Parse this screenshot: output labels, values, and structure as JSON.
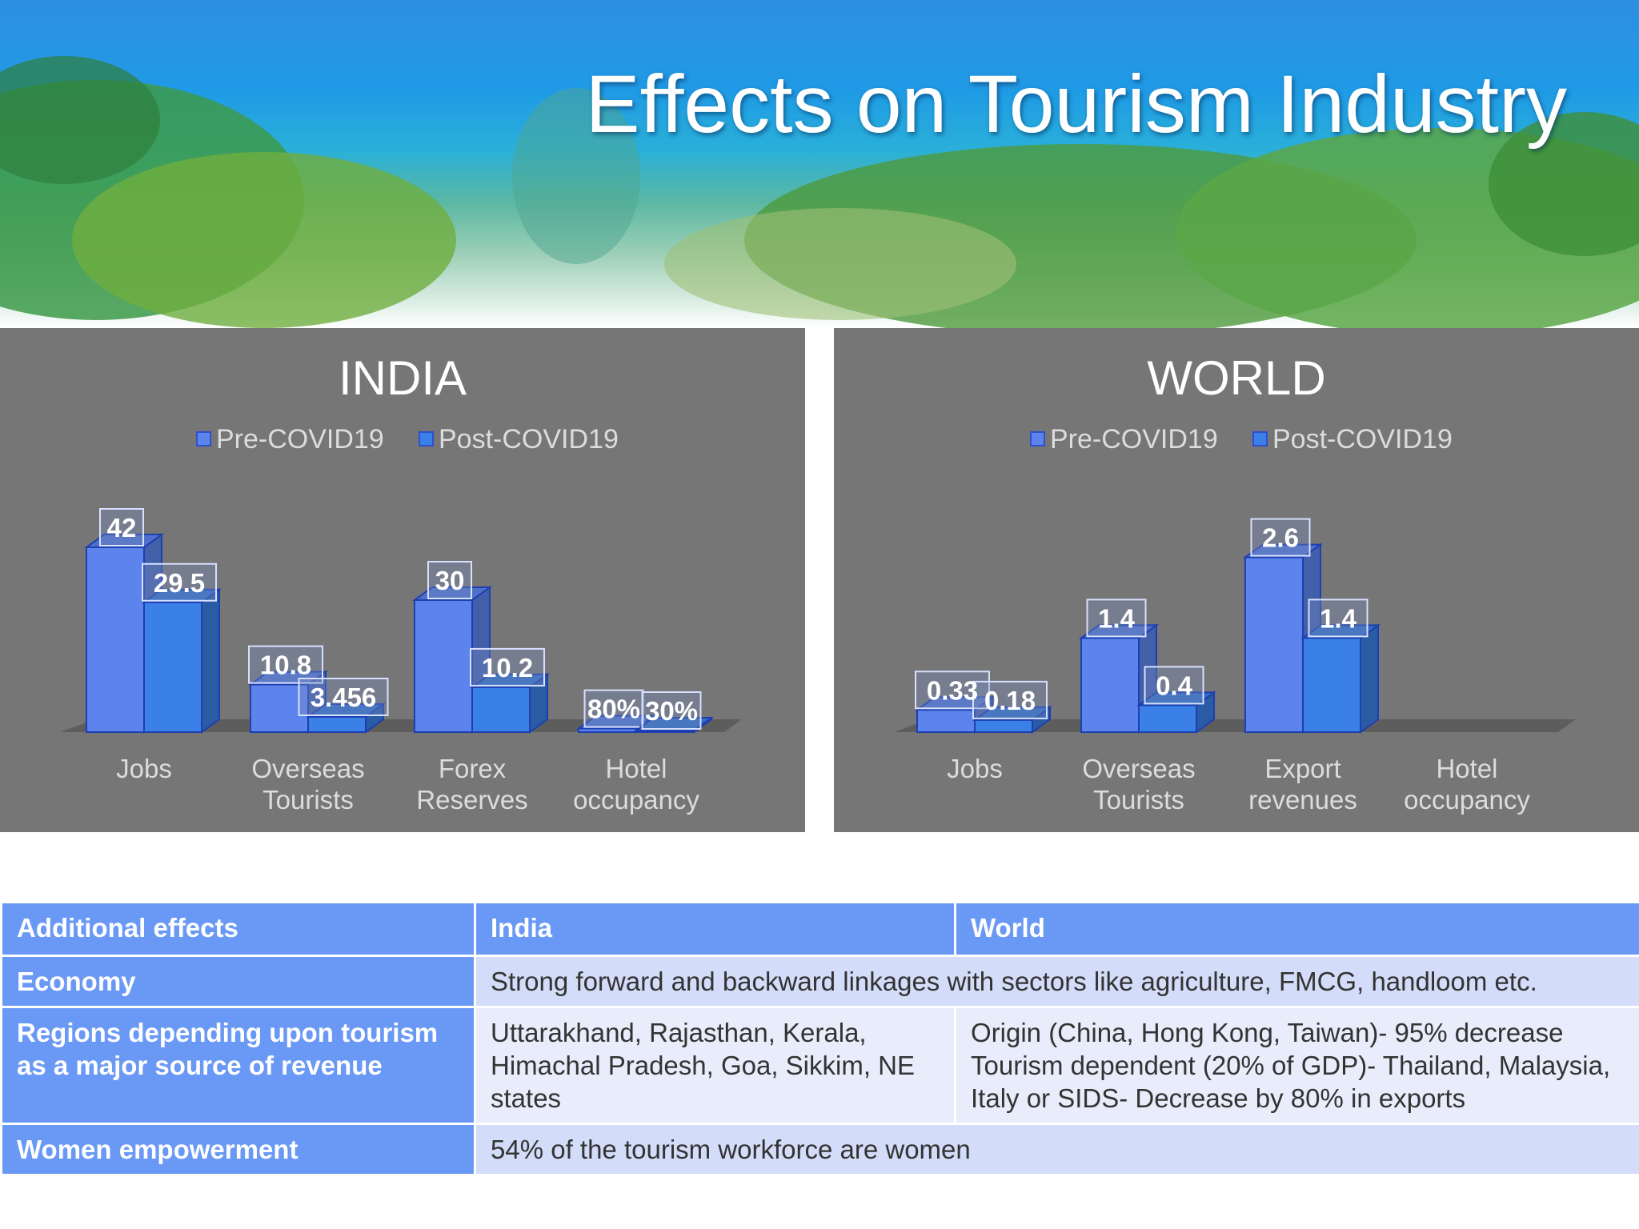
{
  "title": "Effects on Tourism Industry",
  "colors": {
    "pre": "#5c84ec",
    "post": "#3a80e6",
    "panel": "#767676",
    "table_header": "#6a99f5"
  },
  "india": {
    "title": "INDIA",
    "legend": [
      "Pre-COVID19",
      "Post-COVID19"
    ]
  },
  "world": {
    "title": "WORLD",
    "legend": [
      "Pre-COVID19",
      "Post-COVID19"
    ]
  },
  "chart_data": [
    {
      "type": "bar",
      "title": "INDIA",
      "categories": [
        [
          "Jobs"
        ],
        [
          "Overseas",
          "Tourists"
        ],
        [
          "Forex",
          "Reserves"
        ],
        [
          "Hotel",
          "occupancy"
        ]
      ],
      "series": [
        {
          "name": "Pre-COVID19",
          "values": [
            42,
            10.8,
            30,
            0.8
          ],
          "labels": [
            "42",
            "10.8",
            "30",
            "80%"
          ]
        },
        {
          "name": "Post-COVID19",
          "values": [
            29.5,
            3.456,
            10.2,
            0.3
          ],
          "labels": [
            "29.5",
            "3.456",
            "10.2",
            "30%"
          ]
        }
      ],
      "legend": "top",
      "grid": false
    },
    {
      "type": "bar",
      "title": "WORLD",
      "categories": [
        [
          "Jobs"
        ],
        [
          "Overseas",
          "Tourists"
        ],
        [
          "Export",
          "revenues"
        ],
        [
          "Hotel",
          "occupancy"
        ]
      ],
      "series": [
        {
          "name": "Pre-COVID19",
          "values": [
            0.33,
            1.4,
            2.6,
            null
          ],
          "labels": [
            "0.33",
            "1.4",
            "2.6",
            ""
          ]
        },
        {
          "name": "Post-COVID19",
          "values": [
            0.18,
            0.4,
            1.4,
            null
          ],
          "labels": [
            "0.18",
            "0.4",
            "1.4",
            ""
          ]
        }
      ],
      "legend": "top",
      "grid": false
    }
  ],
  "table": {
    "headers": [
      "Additional effects",
      "India",
      "World"
    ],
    "rows": [
      {
        "label": "Economy",
        "span": "Strong forward and backward linkages with sectors like agriculture, FMCG, handloom etc."
      },
      {
        "label": "Regions depending upon tourism as a major source of revenue",
        "india": "Uttarakhand, Rajasthan, Kerala, Himachal Pradesh, Goa, Sikkim, NE states",
        "world": "Origin (China, Hong Kong, Taiwan)- 95% decrease Tourism dependent (20% of GDP)- Thailand, Malaysia, Italy or SIDS- Decrease by 80% in exports"
      },
      {
        "label": "Women empowerment",
        "span": "54% of the tourism workforce are women"
      }
    ]
  }
}
